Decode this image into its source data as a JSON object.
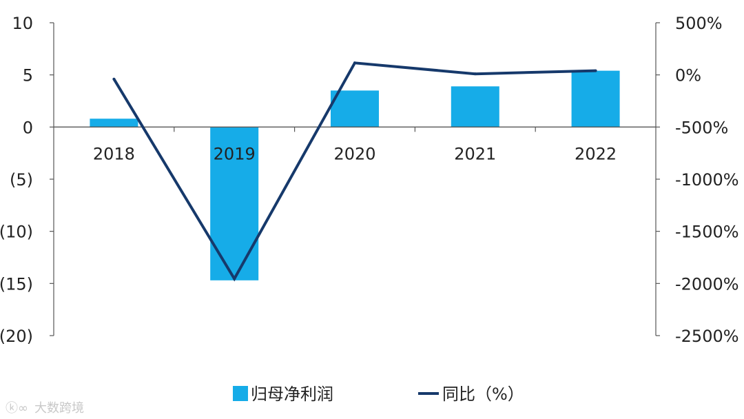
{
  "chart_data": {
    "type": "bar",
    "categories": [
      "2018",
      "2019",
      "2020",
      "2021",
      "2022"
    ],
    "series": [
      {
        "name": "归母净利润",
        "kind": "bar",
        "axis": "left",
        "color": "#16ace8",
        "values": [
          0.8,
          -14.7,
          3.5,
          3.9,
          5.4
        ]
      },
      {
        "name": "同比（%）",
        "kind": "line",
        "axis": "right",
        "color": "#16396b",
        "values": [
          -40,
          -1955,
          115,
          10,
          40
        ]
      }
    ],
    "y_left": {
      "ylim": [
        -20,
        10
      ],
      "ticks": [
        10,
        5,
        0,
        -5,
        -10,
        -15,
        -20
      ],
      "tick_labels": [
        "10",
        "5",
        "0",
        "(5)",
        "(10)",
        "(15)",
        "(20)"
      ],
      "negative_label_color": "#c0272d"
    },
    "y_right": {
      "ylim": [
        -2500,
        500
      ],
      "ticks": [
        500,
        0,
        -500,
        -1000,
        -1500,
        -2000,
        -2500
      ],
      "tick_labels": [
        "500%",
        "0%",
        "-500%",
        "-1000%",
        "-1500%",
        "-2000%",
        "-2500%"
      ]
    },
    "legend": {
      "placement": "bottom-center"
    },
    "grid": false,
    "watermark": "大数跨境"
  }
}
